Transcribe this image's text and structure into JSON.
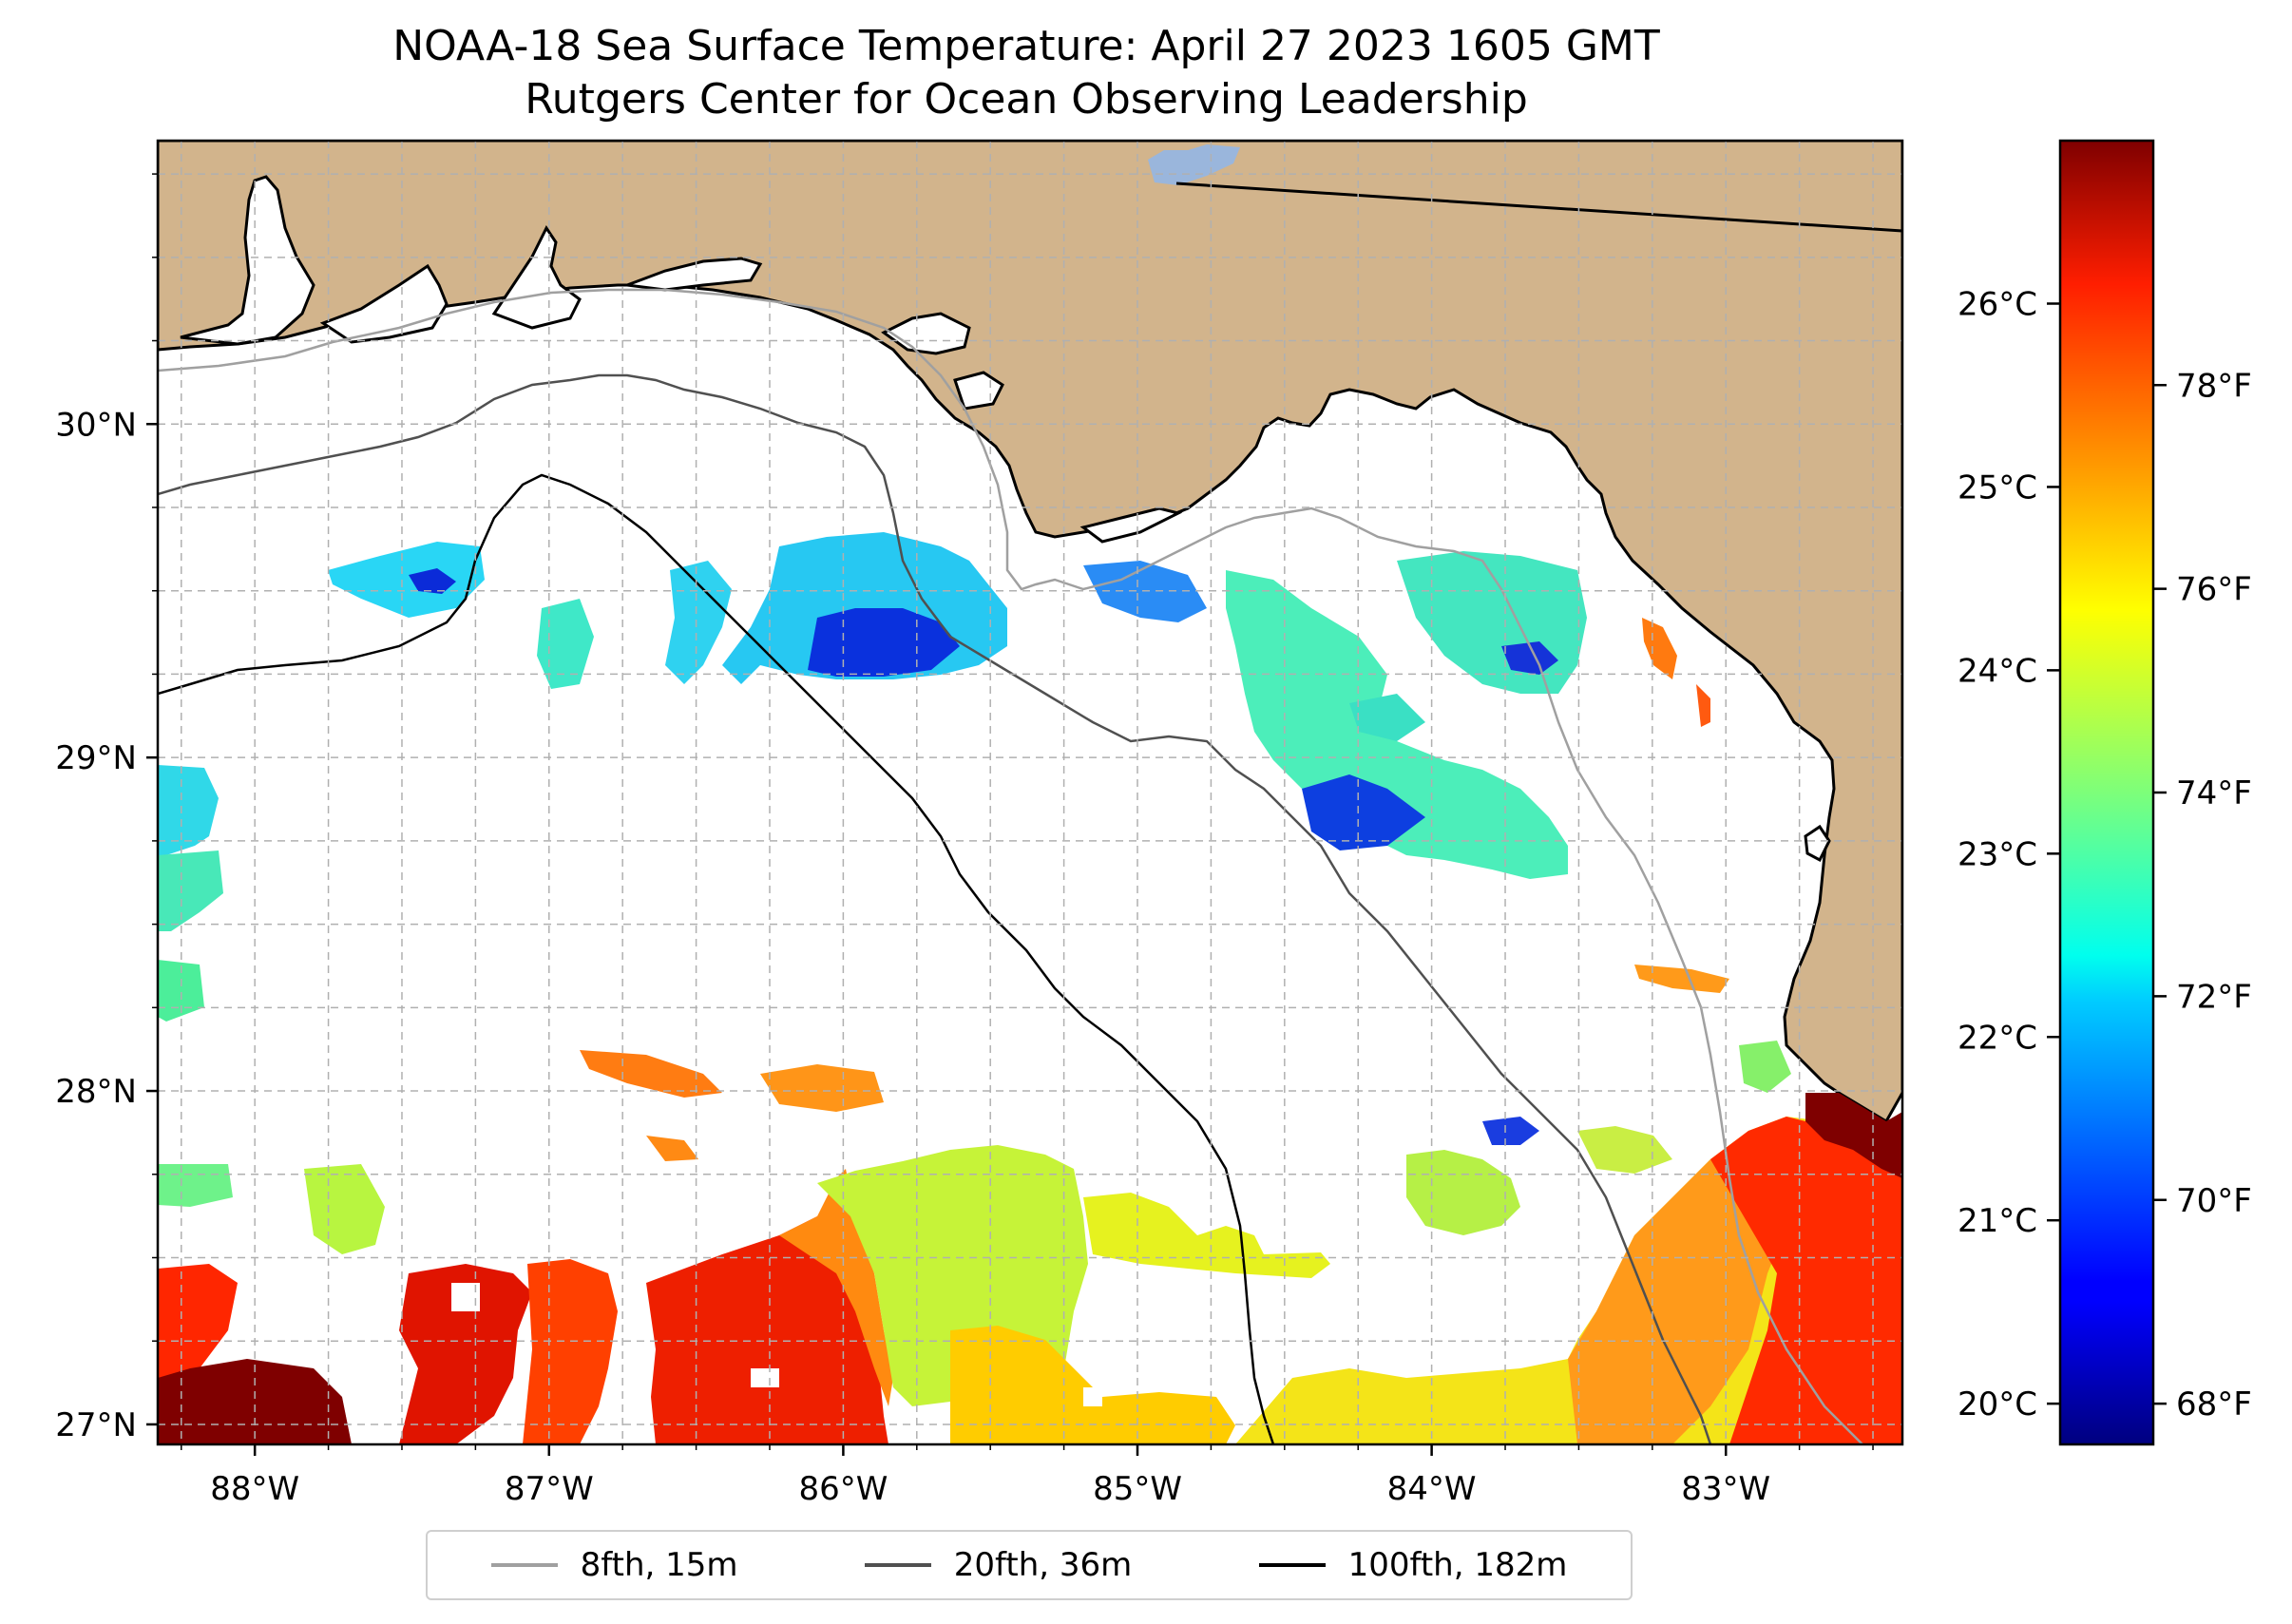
{
  "header": {
    "title_line1": "NOAA-18 Sea Surface Temperature: April 27 2023 1605 GMT",
    "title_line2": "Rutgers Center for Ocean Observing Leadership"
  },
  "map": {
    "land_color": "#D2B48C",
    "ocean_color": "#FFFFFF",
    "lon_ticks": [
      {
        "value": -88,
        "label": "88°W"
      },
      {
        "value": -87,
        "label": "87°W"
      },
      {
        "value": -86,
        "label": "86°W"
      },
      {
        "value": -85,
        "label": "85°W"
      },
      {
        "value": -84,
        "label": "84°W"
      },
      {
        "value": -83,
        "label": "83°W"
      }
    ],
    "lat_ticks": [
      {
        "value": 30,
        "label": "30°N"
      },
      {
        "value": 29,
        "label": "29°N"
      },
      {
        "value": 28,
        "label": "28°N"
      },
      {
        "value": 27,
        "label": "27°N"
      }
    ]
  },
  "colorbar": {
    "colormap": "jet",
    "celsius_ticks": [
      {
        "value": 26,
        "label": "26°C"
      },
      {
        "value": 25,
        "label": "25°C"
      },
      {
        "value": 24,
        "label": "24°C"
      },
      {
        "value": 23,
        "label": "23°C"
      },
      {
        "value": 22,
        "label": "22°C"
      },
      {
        "value": 21,
        "label": "21°C"
      },
      {
        "value": 20,
        "label": "20°C"
      }
    ],
    "fahrenheit_ticks": [
      {
        "value": 78,
        "label": "78°F"
      },
      {
        "value": 76,
        "label": "76°F"
      },
      {
        "value": 74,
        "label": "74°F"
      },
      {
        "value": 72,
        "label": "72°F"
      },
      {
        "value": 70,
        "label": "70°F"
      },
      {
        "value": 68,
        "label": "68°F"
      }
    ]
  },
  "legend": {
    "items": [
      {
        "label": "8fth, 15m",
        "color": "#a0a0a0"
      },
      {
        "label": "20fth, 36m",
        "color": "#505050"
      },
      {
        "label": "100fth, 182m",
        "color": "#000000"
      }
    ]
  }
}
